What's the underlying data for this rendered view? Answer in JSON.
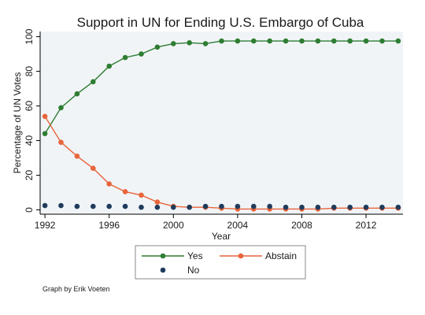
{
  "chart_data": {
    "type": "line",
    "title": "Support in UN for Ending U.S. Embargo of Cuba",
    "xlabel": "Year",
    "ylabel": "Percentage of UN Votes",
    "xlim": [
      1991.7,
      2014.3
    ],
    "ylim": [
      -2.5,
      103
    ],
    "xticks": [
      1992,
      1996,
      2000,
      2004,
      2008,
      2012
    ],
    "yticks": [
      0,
      20,
      40,
      60,
      80,
      100
    ],
    "x": [
      1992,
      1993,
      1994,
      1995,
      1996,
      1997,
      1998,
      1999,
      2000,
      2001,
      2002,
      2003,
      2004,
      2005,
      2006,
      2007,
      2008,
      2009,
      2010,
      2011,
      2012,
      2013,
      2014
    ],
    "series": [
      {
        "name": "Yes",
        "style": "line-marker",
        "color": "#2e7d32",
        "values": [
          44,
          59,
          67,
          74,
          83,
          88,
          90,
          94,
          96,
          96.5,
          96,
          97.5,
          97.5,
          97.5,
          97.5,
          97.5,
          97.5,
          97.5,
          97.5,
          97.5,
          97.5,
          97.5,
          97.5
        ]
      },
      {
        "name": "Abstain",
        "style": "line-marker",
        "color": "#e8643a",
        "values": [
          54,
          39,
          31,
          24,
          15,
          10.5,
          8.5,
          4.5,
          2,
          1.5,
          1.5,
          1,
          0.5,
          0.5,
          0.5,
          0.5,
          0.5,
          0.5,
          1,
          1,
          1,
          1,
          1
        ]
      },
      {
        "name": "No",
        "style": "marker",
        "color": "#1f3b5c",
        "values": [
          2.5,
          2.5,
          2,
          2,
          2,
          2,
          1.5,
          1.5,
          1.5,
          1.5,
          2,
          2,
          2,
          2,
          2,
          1.5,
          1.5,
          1.5,
          1.5,
          1.5,
          1.5,
          1.5,
          1.5
        ]
      }
    ],
    "legend": {
      "position": "bottom",
      "order": [
        "Yes",
        "Abstain",
        "No"
      ]
    },
    "grid": false,
    "background": "#f1f4f7"
  },
  "credit": "Graph by Erik Voeten"
}
